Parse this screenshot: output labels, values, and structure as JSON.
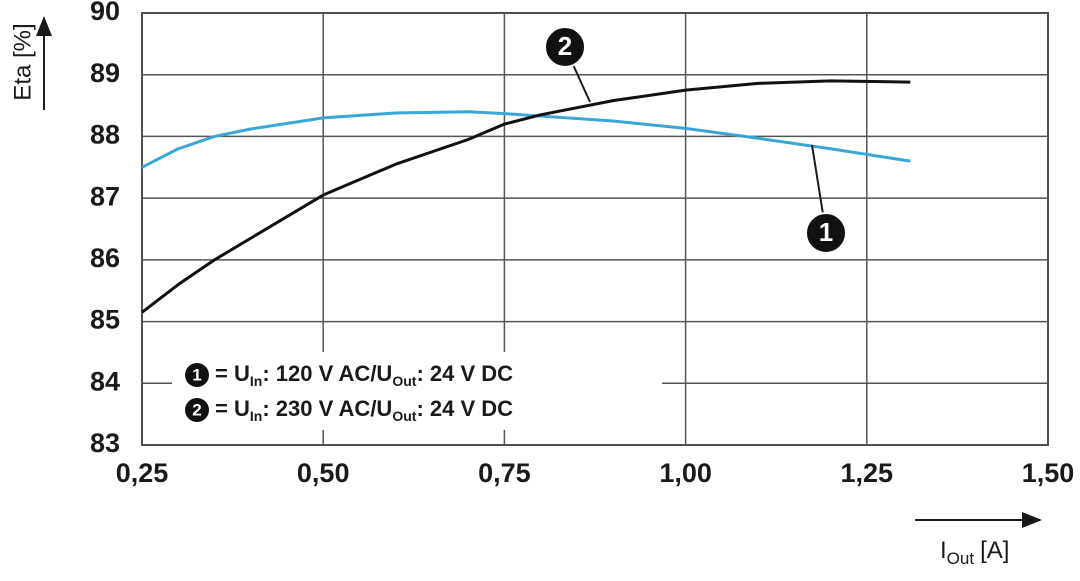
{
  "chart_data": {
    "type": "line",
    "y_label": "Eta [%]",
    "x_label": {
      "main": "I",
      "sub": "Out",
      "unit": "[A]"
    },
    "x": [
      0.25,
      0.3,
      0.35,
      0.4,
      0.5,
      0.6,
      0.7,
      0.75,
      0.8,
      0.9,
      1.0,
      1.1,
      1.2,
      1.31
    ],
    "series": [
      {
        "name": "1",
        "color": "#3aa6d6",
        "values": [
          87.5,
          87.8,
          88.0,
          88.12,
          88.3,
          88.38,
          88.4,
          88.37,
          88.33,
          88.25,
          88.13,
          87.97,
          87.8,
          87.6
        ]
      },
      {
        "name": "2",
        "color": "#111111",
        "values": [
          85.15,
          85.6,
          86.0,
          86.35,
          87.05,
          87.55,
          87.95,
          88.2,
          88.35,
          88.58,
          88.75,
          88.86,
          88.9,
          88.88
        ]
      }
    ],
    "legend": [
      {
        "parts": [
          "= U",
          "In",
          ": 120 V AC/U",
          "Out",
          ": 24 V DC"
        ]
      },
      {
        "parts": [
          "= U",
          "In",
          ": 230 V AC/U",
          "Out",
          ": 24 V DC"
        ]
      }
    ],
    "xlim": [
      0.25,
      1.5
    ],
    "xticks": [
      {
        "value": 0.25,
        "label": "0,25"
      },
      {
        "value": 0.5,
        "label": "0,50"
      },
      {
        "value": 0.75,
        "label": "0,75"
      },
      {
        "value": 1.0,
        "label": "1,00"
      },
      {
        "value": 1.25,
        "label": "1,25"
      },
      {
        "value": 1.5,
        "label": "1,50"
      }
    ],
    "ylim": [
      83,
      90
    ],
    "yticks": [
      83,
      84,
      85,
      86,
      87,
      88,
      89,
      90
    ],
    "grid": true
  }
}
